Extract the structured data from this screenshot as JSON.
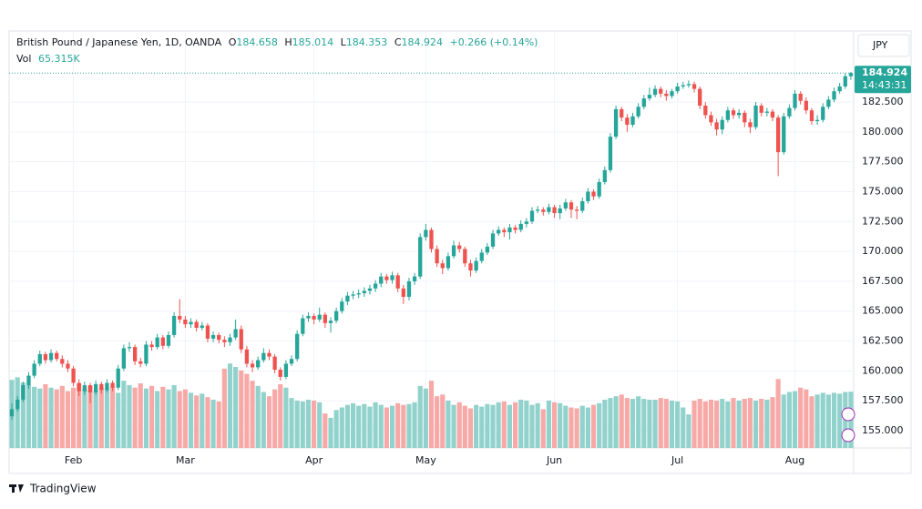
{
  "chart_data": {
    "type": "candlestick",
    "title": "British Pound / Japanese Yen, 1D, OANDA",
    "ohlc_labels": [
      "O",
      "H",
      "L",
      "C"
    ],
    "change": "+0.266 (+0.14%)",
    "volume_title": "Vol",
    "volume_label": "65.315K",
    "currency": "JPY",
    "countdown": "14:43:31",
    "brand": "TradingView",
    "up_color": "#26a69a",
    "down_color": "#ef5350",
    "volume_up_color": "#92d2cc",
    "volume_down_color": "#f7a9a7",
    "grid": true,
    "ylim": [
      153.55,
      188.37
    ],
    "yticks": [
      {
        "value": 155,
        "label": "155.000"
      },
      {
        "value": 157.5,
        "label": "157.500"
      },
      {
        "value": 160,
        "label": "160.000"
      },
      {
        "value": 162.5,
        "label": "162.500"
      },
      {
        "value": 165,
        "label": "165.000"
      },
      {
        "value": 167.5,
        "label": "167.500"
      },
      {
        "value": 170,
        "label": "170.000"
      },
      {
        "value": 172.5,
        "label": "172.500"
      },
      {
        "value": 175,
        "label": "175.000"
      },
      {
        "value": 177.5,
        "label": "177.500"
      },
      {
        "value": 180,
        "label": "180.000"
      },
      {
        "value": 182.5,
        "label": "182.500"
      }
    ],
    "xticks": [
      {
        "value": 11,
        "label": "Feb"
      },
      {
        "value": 31,
        "label": "Mar"
      },
      {
        "value": 54,
        "label": "Apr"
      },
      {
        "value": 74,
        "label": "May"
      },
      {
        "value": 97,
        "label": "Jun"
      },
      {
        "value": 119,
        "label": "Jul"
      },
      {
        "value": 140,
        "label": "Aug"
      }
    ],
    "volume_lim": [
      0,
      150
    ],
    "candles": [
      [
        156.2,
        157.3,
        155.9,
        156.8
      ],
      [
        156.8,
        157.9,
        156.6,
        157.6
      ],
      [
        157.6,
        159.1,
        157.4,
        158.8
      ],
      [
        158.8,
        159.9,
        158.5,
        159.6
      ],
      [
        159.6,
        160.9,
        159.4,
        160.6
      ],
      [
        160.6,
        161.7,
        160.4,
        161.4
      ],
      [
        161.4,
        161.6,
        160.6,
        160.9
      ],
      [
        160.9,
        161.8,
        160.7,
        161.5
      ],
      [
        161.5,
        161.7,
        160.8,
        161.0
      ],
      [
        161.0,
        161.3,
        160.3,
        160.6
      ],
      [
        160.6,
        160.9,
        159.9,
        160.2
      ],
      [
        160.2,
        160.4,
        158.7,
        159.0
      ],
      [
        159.0,
        159.3,
        157.9,
        158.3
      ],
      [
        158.3,
        159.1,
        158.0,
        158.8
      ],
      [
        158.8,
        159.0,
        157.3,
        158.2
      ],
      [
        158.2,
        159.2,
        158.0,
        158.9
      ],
      [
        158.9,
        159.1,
        158.1,
        158.4
      ],
      [
        158.4,
        159.3,
        158.2,
        159.0
      ],
      [
        159.0,
        159.2,
        158.3,
        158.6
      ],
      [
        158.6,
        160.5,
        158.4,
        160.2
      ],
      [
        160.2,
        162.2,
        160.0,
        161.9
      ],
      [
        161.9,
        162.4,
        161.6,
        162.0
      ],
      [
        162.0,
        162.2,
        160.5,
        160.8
      ],
      [
        160.8,
        161.1,
        160.3,
        160.6
      ],
      [
        160.6,
        162.5,
        160.4,
        162.2
      ],
      [
        162.2,
        162.5,
        161.7,
        162.0
      ],
      [
        162.0,
        163.1,
        161.8,
        162.8
      ],
      [
        162.8,
        163.0,
        161.8,
        162.1
      ],
      [
        162.1,
        163.3,
        161.9,
        163.0
      ],
      [
        163.0,
        164.9,
        162.8,
        164.6
      ],
      [
        164.6,
        166.0,
        164.0,
        164.3
      ],
      [
        164.3,
        164.6,
        163.6,
        163.9
      ],
      [
        163.9,
        164.4,
        163.6,
        164.1
      ],
      [
        164.1,
        164.3,
        163.3,
        163.6
      ],
      [
        163.6,
        164.1,
        163.4,
        163.8
      ],
      [
        163.8,
        164.0,
        162.4,
        162.7
      ],
      [
        162.7,
        163.3,
        162.4,
        163.0
      ],
      [
        163.0,
        163.2,
        162.3,
        162.6
      ],
      [
        162.6,
        162.9,
        162.0,
        162.4
      ],
      [
        162.4,
        163.1,
        162.1,
        162.8
      ],
      [
        162.8,
        164.3,
        162.6,
        163.5
      ],
      [
        163.5,
        163.8,
        161.5,
        161.8
      ],
      [
        161.8,
        162.1,
        160.3,
        160.6
      ],
      [
        160.6,
        160.9,
        159.9,
        160.3
      ],
      [
        160.3,
        161.2,
        160.1,
        160.9
      ],
      [
        160.9,
        161.9,
        160.7,
        161.5
      ],
      [
        161.5,
        161.8,
        160.9,
        161.2
      ],
      [
        161.2,
        161.4,
        159.8,
        160.1
      ],
      [
        160.1,
        160.3,
        159.2,
        159.5
      ],
      [
        159.5,
        160.9,
        159.3,
        160.6
      ],
      [
        160.6,
        161.3,
        160.4,
        161.0
      ],
      [
        161.0,
        163.4,
        160.8,
        163.1
      ],
      [
        163.1,
        164.7,
        162.9,
        164.4
      ],
      [
        164.4,
        164.9,
        164.1,
        164.6
      ],
      [
        164.6,
        164.8,
        163.9,
        164.3
      ],
      [
        164.3,
        165.3,
        164.1,
        164.7
      ],
      [
        164.7,
        164.9,
        163.6,
        164.0
      ],
      [
        164.0,
        164.5,
        163.2,
        164.2
      ],
      [
        164.2,
        165.3,
        164.0,
        165.0
      ],
      [
        165.0,
        166.1,
        164.8,
        165.8
      ],
      [
        165.8,
        166.6,
        165.5,
        166.3
      ],
      [
        166.3,
        166.7,
        166.0,
        166.4
      ],
      [
        166.4,
        166.8,
        166.1,
        166.5
      ],
      [
        166.5,
        167.0,
        166.2,
        166.7
      ],
      [
        166.7,
        167.2,
        166.4,
        166.9
      ],
      [
        166.9,
        167.6,
        166.6,
        167.3
      ],
      [
        167.3,
        168.2,
        167.0,
        167.9
      ],
      [
        167.9,
        168.1,
        167.3,
        167.6
      ],
      [
        167.6,
        168.3,
        167.3,
        168.0
      ],
      [
        168.0,
        168.2,
        166.6,
        166.9
      ],
      [
        166.9,
        167.2,
        165.6,
        166.2
      ],
      [
        166.2,
        167.8,
        165.9,
        167.5
      ],
      [
        167.5,
        168.2,
        167.2,
        167.9
      ],
      [
        167.9,
        171.5,
        167.7,
        171.2
      ],
      [
        171.2,
        172.3,
        170.9,
        171.8
      ],
      [
        171.8,
        172.0,
        169.9,
        170.2
      ],
      [
        170.2,
        170.5,
        168.7,
        169.0
      ],
      [
        169.0,
        169.3,
        168.1,
        168.6
      ],
      [
        168.6,
        169.9,
        168.4,
        169.6
      ],
      [
        169.6,
        170.9,
        169.4,
        170.5
      ],
      [
        170.5,
        170.8,
        169.9,
        170.2
      ],
      [
        170.2,
        170.4,
        168.7,
        169.0
      ],
      [
        169.0,
        169.3,
        167.9,
        168.4
      ],
      [
        168.4,
        169.5,
        168.2,
        169.2
      ],
      [
        169.2,
        170.2,
        169.0,
        169.9
      ],
      [
        169.9,
        170.7,
        169.7,
        170.4
      ],
      [
        170.4,
        171.8,
        170.2,
        171.5
      ],
      [
        171.5,
        172.1,
        171.3,
        171.8
      ],
      [
        171.8,
        172.0,
        171.2,
        171.6
      ],
      [
        171.6,
        172.3,
        171.0,
        172.0
      ],
      [
        172.0,
        172.2,
        171.5,
        171.8
      ],
      [
        171.8,
        172.6,
        171.6,
        172.3
      ],
      [
        172.3,
        172.8,
        172.0,
        172.5
      ],
      [
        172.5,
        173.7,
        172.3,
        173.4
      ],
      [
        173.4,
        173.8,
        173.2,
        173.5
      ],
      [
        173.5,
        173.7,
        173.0,
        173.3
      ],
      [
        173.3,
        174.0,
        173.1,
        173.7
      ],
      [
        173.7,
        173.9,
        172.8,
        173.2
      ],
      [
        173.2,
        173.9,
        172.7,
        173.6
      ],
      [
        173.6,
        174.4,
        173.4,
        174.1
      ],
      [
        174.1,
        174.3,
        172.8,
        173.5
      ],
      [
        173.5,
        173.8,
        172.7,
        173.4
      ],
      [
        173.4,
        174.5,
        173.2,
        174.2
      ],
      [
        174.2,
        175.3,
        174.0,
        175.0
      ],
      [
        175.0,
        175.2,
        174.3,
        174.6
      ],
      [
        174.6,
        176.1,
        174.4,
        175.8
      ],
      [
        175.8,
        177.1,
        175.6,
        176.8
      ],
      [
        176.8,
        179.9,
        176.6,
        179.6
      ],
      [
        179.6,
        182.2,
        179.4,
        181.9
      ],
      [
        181.9,
        182.1,
        180.9,
        181.2
      ],
      [
        181.2,
        181.5,
        180.0,
        180.6
      ],
      [
        180.6,
        181.6,
        180.4,
        181.3
      ],
      [
        181.3,
        182.4,
        181.1,
        182.1
      ],
      [
        182.1,
        183.1,
        181.9,
        182.8
      ],
      [
        182.8,
        183.7,
        182.6,
        183.1
      ],
      [
        183.1,
        183.9,
        182.9,
        183.6
      ],
      [
        183.6,
        183.8,
        182.9,
        183.2
      ],
      [
        183.2,
        183.5,
        182.6,
        183.0
      ],
      [
        183.0,
        183.6,
        182.8,
        183.4
      ],
      [
        183.4,
        184.1,
        183.2,
        183.8
      ],
      [
        183.8,
        184.2,
        183.6,
        183.9
      ],
      [
        183.9,
        184.3,
        183.7,
        184.0
      ],
      [
        184.0,
        184.2,
        183.3,
        183.6
      ],
      [
        183.6,
        183.8,
        181.9,
        182.2
      ],
      [
        182.2,
        182.5,
        181.1,
        181.4
      ],
      [
        181.4,
        181.7,
        180.5,
        180.8
      ],
      [
        180.8,
        181.1,
        179.7,
        180.2
      ],
      [
        180.2,
        181.3,
        179.8,
        181.0
      ],
      [
        181.0,
        182.1,
        180.8,
        181.8
      ],
      [
        181.8,
        182.0,
        181.1,
        181.4
      ],
      [
        181.4,
        181.9,
        181.1,
        181.6
      ],
      [
        181.6,
        181.8,
        180.4,
        180.8
      ],
      [
        180.8,
        181.1,
        179.9,
        180.4
      ],
      [
        180.4,
        182.5,
        180.2,
        182.2
      ],
      [
        182.2,
        182.4,
        181.3,
        181.6
      ],
      [
        181.6,
        182.0,
        181.3,
        181.7
      ],
      [
        181.7,
        181.9,
        180.9,
        181.2
      ],
      [
        181.2,
        181.4,
        176.3,
        178.3
      ],
      [
        178.3,
        181.6,
        178.1,
        181.3
      ],
      [
        181.3,
        182.3,
        181.1,
        182.0
      ],
      [
        182.0,
        183.5,
        181.8,
        183.2
      ],
      [
        183.2,
        183.4,
        182.3,
        182.6
      ],
      [
        182.6,
        182.9,
        181.5,
        181.8
      ],
      [
        181.8,
        182.0,
        180.6,
        180.9
      ],
      [
        180.9,
        181.4,
        180.6,
        181.0
      ],
      [
        181.0,
        182.4,
        180.8,
        182.1
      ],
      [
        182.1,
        183.0,
        181.9,
        182.7
      ],
      [
        182.7,
        183.7,
        182.5,
        183.4
      ],
      [
        183.4,
        184.1,
        183.2,
        183.8
      ],
      [
        183.8,
        184.9,
        183.6,
        184.658
      ],
      [
        184.658,
        185.014,
        184.353,
        184.924
      ]
    ],
    "volumes": [
      79,
      82,
      76,
      73,
      71,
      69,
      74,
      70,
      68,
      72,
      66,
      70,
      74,
      68,
      72,
      66,
      70,
      69,
      71,
      64,
      78,
      73,
      70,
      75,
      69,
      72,
      66,
      71,
      68,
      73,
      66,
      68,
      64,
      61,
      63,
      59,
      56,
      54,
      92,
      98,
      94,
      90,
      86,
      78,
      72,
      65,
      60,
      68,
      74,
      70,
      58,
      55,
      54,
      56,
      55,
      53,
      40,
      35,
      44,
      47,
      50,
      52,
      49,
      51,
      48,
      53,
      50,
      47,
      49,
      52,
      50,
      51,
      53,
      72,
      69,
      78,
      60,
      62,
      55,
      50,
      53,
      49,
      46,
      50,
      48,
      51,
      50,
      53,
      54,
      50,
      53,
      56,
      55,
      50,
      52,
      45,
      55,
      53,
      52,
      49,
      47,
      46,
      49,
      47,
      50,
      52,
      56,
      58,
      60,
      62,
      58,
      57,
      60,
      57,
      56,
      56,
      58,
      57,
      55,
      54,
      47,
      39,
      55,
      57,
      54,
      56,
      55,
      57,
      54,
      58,
      55,
      57,
      58,
      55,
      57,
      56,
      59,
      80,
      62,
      65,
      66,
      70,
      68,
      60,
      62,
      64,
      62,
      64,
      63,
      65,
      65.315
    ]
  }
}
